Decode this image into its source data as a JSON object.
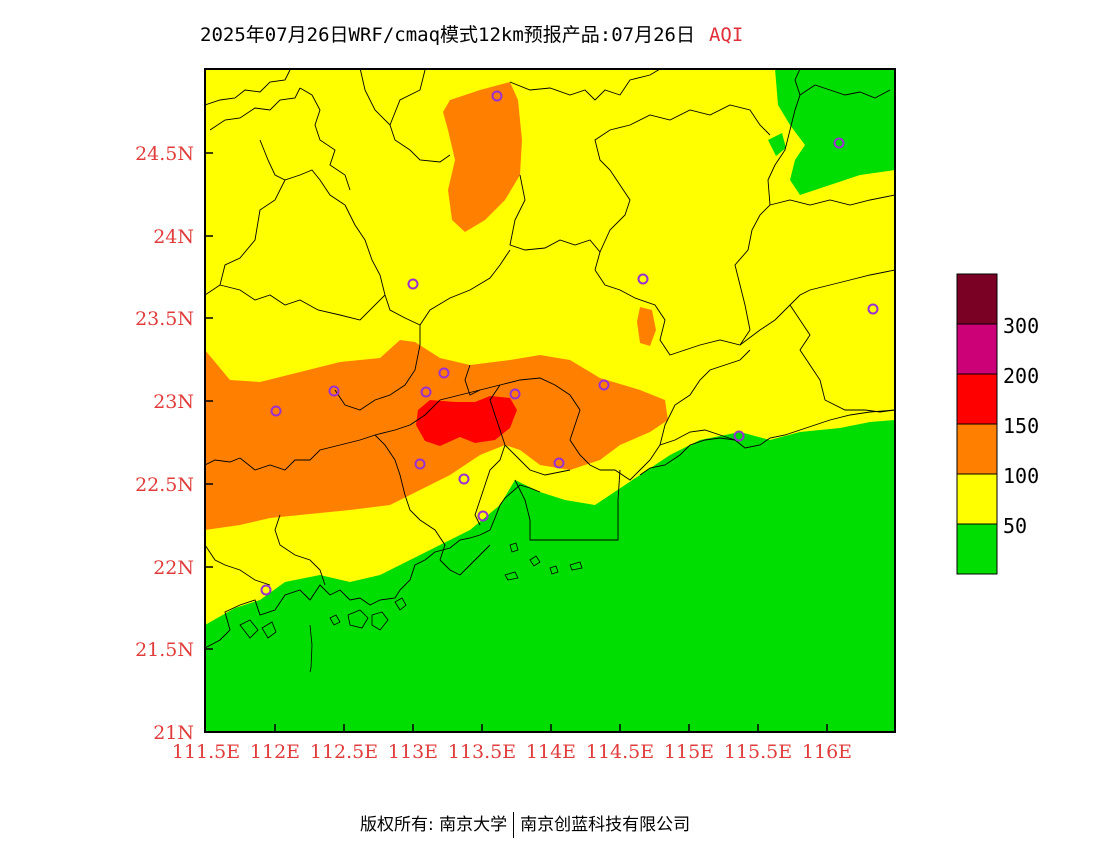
{
  "title": {
    "main": "2025年07月26日WRF/cmaq模式12km预报产品:07月26日",
    "variable": "AQI"
  },
  "axes": {
    "lon_ticks": [
      "111.5E",
      "112E",
      "112.5E",
      "113E",
      "113.5E",
      "114E",
      "114.5E",
      "115E",
      "115.5E",
      "116E"
    ],
    "lat_ticks": [
      "24.5N",
      "24N",
      "23.5N",
      "23N",
      "22.5N",
      "22N",
      "21.5N",
      "21N"
    ]
  },
  "legend": {
    "labels": [
      "300",
      "200",
      "150",
      "100",
      "50"
    ],
    "colors": [
      "#7a0024",
      "#cc0077",
      "#ff0000",
      "#ff8000",
      "#ffff00",
      "#00dd00"
    ]
  },
  "colors": {
    "good": "#00dd00",
    "moderate": "#ffff00",
    "unhealthy_sensitive": "#ff8000",
    "unhealthy": "#ff0000",
    "station_marker": "#9b30d0"
  },
  "footer": {
    "left": "版权所有: 南京大学",
    "right": "南京创蓝科技有限公司"
  }
}
